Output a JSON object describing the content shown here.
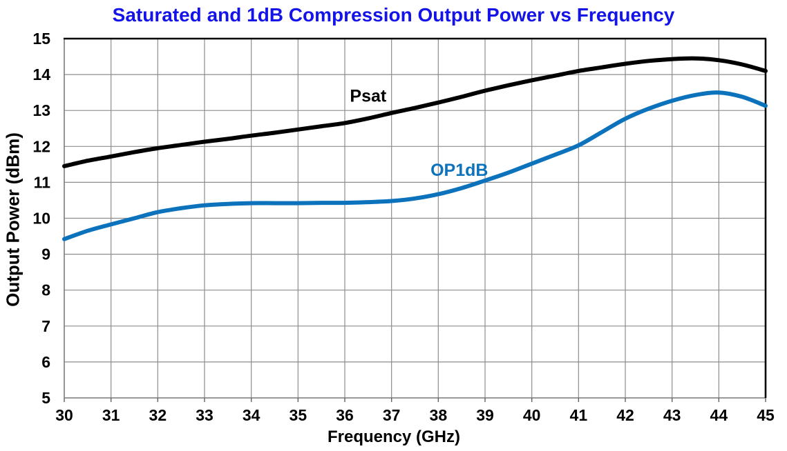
{
  "title": {
    "text": "Saturated and 1dB Compression Output Power vs Frequency",
    "color": "#1414E8"
  },
  "chart_data": {
    "type": "line",
    "title": "Saturated and 1dB Compression Output Power vs Frequency",
    "xlabel": "Frequency (GHz)",
    "ylabel": "Output Power (dBm)",
    "xlim": [
      30,
      45
    ],
    "ylim": [
      5,
      15
    ],
    "grid": true,
    "legend_position": "inline-annotations",
    "x_ticks": [
      30,
      31,
      32,
      33,
      34,
      35,
      36,
      37,
      38,
      39,
      40,
      41,
      42,
      43,
      44,
      45
    ],
    "y_ticks": [
      5,
      6,
      7,
      8,
      9,
      10,
      11,
      12,
      13,
      14,
      15
    ],
    "x": [
      30,
      30.5,
      31,
      31.5,
      32,
      32.5,
      33,
      33.5,
      34,
      34.5,
      35,
      35.5,
      36,
      36.5,
      37,
      37.5,
      38,
      38.5,
      39,
      39.5,
      40,
      40.5,
      41,
      41.5,
      42,
      42.5,
      43,
      43.5,
      44,
      44.5,
      45
    ],
    "series": [
      {
        "name": "Psat",
        "color": "#000000",
        "values": [
          11.45,
          11.6,
          11.72,
          11.84,
          11.95,
          12.04,
          12.13,
          12.21,
          12.3,
          12.38,
          12.47,
          12.56,
          12.65,
          12.78,
          12.93,
          13.07,
          13.22,
          13.38,
          13.55,
          13.7,
          13.84,
          13.97,
          14.1,
          14.2,
          14.3,
          14.38,
          14.43,
          14.45,
          14.4,
          14.28,
          14.1
        ]
      },
      {
        "name": "OP1dB",
        "color": "#0D72BC",
        "values": [
          9.42,
          9.65,
          9.83,
          10.0,
          10.17,
          10.28,
          10.36,
          10.4,
          10.42,
          10.42,
          10.42,
          10.43,
          10.43,
          10.45,
          10.48,
          10.55,
          10.67,
          10.84,
          11.05,
          11.27,
          11.52,
          11.77,
          12.03,
          12.4,
          12.77,
          13.05,
          13.27,
          13.43,
          13.5,
          13.38,
          13.13
        ]
      }
    ],
    "annotations": [
      {
        "text": "Psat",
        "x": 36.5,
        "y": 13.42,
        "color": "#000000"
      },
      {
        "text": "OP1dB",
        "x": 38.45,
        "y": 11.35,
        "color": "#0D72BC"
      }
    ]
  },
  "style_colors": {
    "gridline": "#8C8C8C",
    "axis_line": "#808080",
    "border_top_right": "#000000",
    "tick": "#606060",
    "background": "#FFFFFF"
  }
}
